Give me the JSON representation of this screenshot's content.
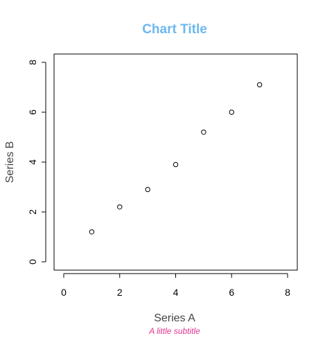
{
  "chart_data": {
    "type": "scatter",
    "title": "Chart Title",
    "subtitle": "A little subtitle",
    "xlabel": "Series A",
    "ylabel": "Series B",
    "xlim": [
      0,
      8
    ],
    "ylim": [
      0,
      8
    ],
    "xticks": [
      0,
      2,
      4,
      6,
      8
    ],
    "yticks": [
      0,
      2,
      4,
      6,
      8
    ],
    "grid": false,
    "colors": {
      "title": "#6cb8f0",
      "subtitle": "#e0338f",
      "points": "#000000"
    },
    "points": [
      {
        "x": 1,
        "y": 1.2
      },
      {
        "x": 2,
        "y": 2.2
      },
      {
        "x": 3,
        "y": 2.9
      },
      {
        "x": 4,
        "y": 3.9
      },
      {
        "x": 5,
        "y": 5.2
      },
      {
        "x": 6,
        "y": 6.0
      },
      {
        "x": 7,
        "y": 7.1
      }
    ]
  }
}
